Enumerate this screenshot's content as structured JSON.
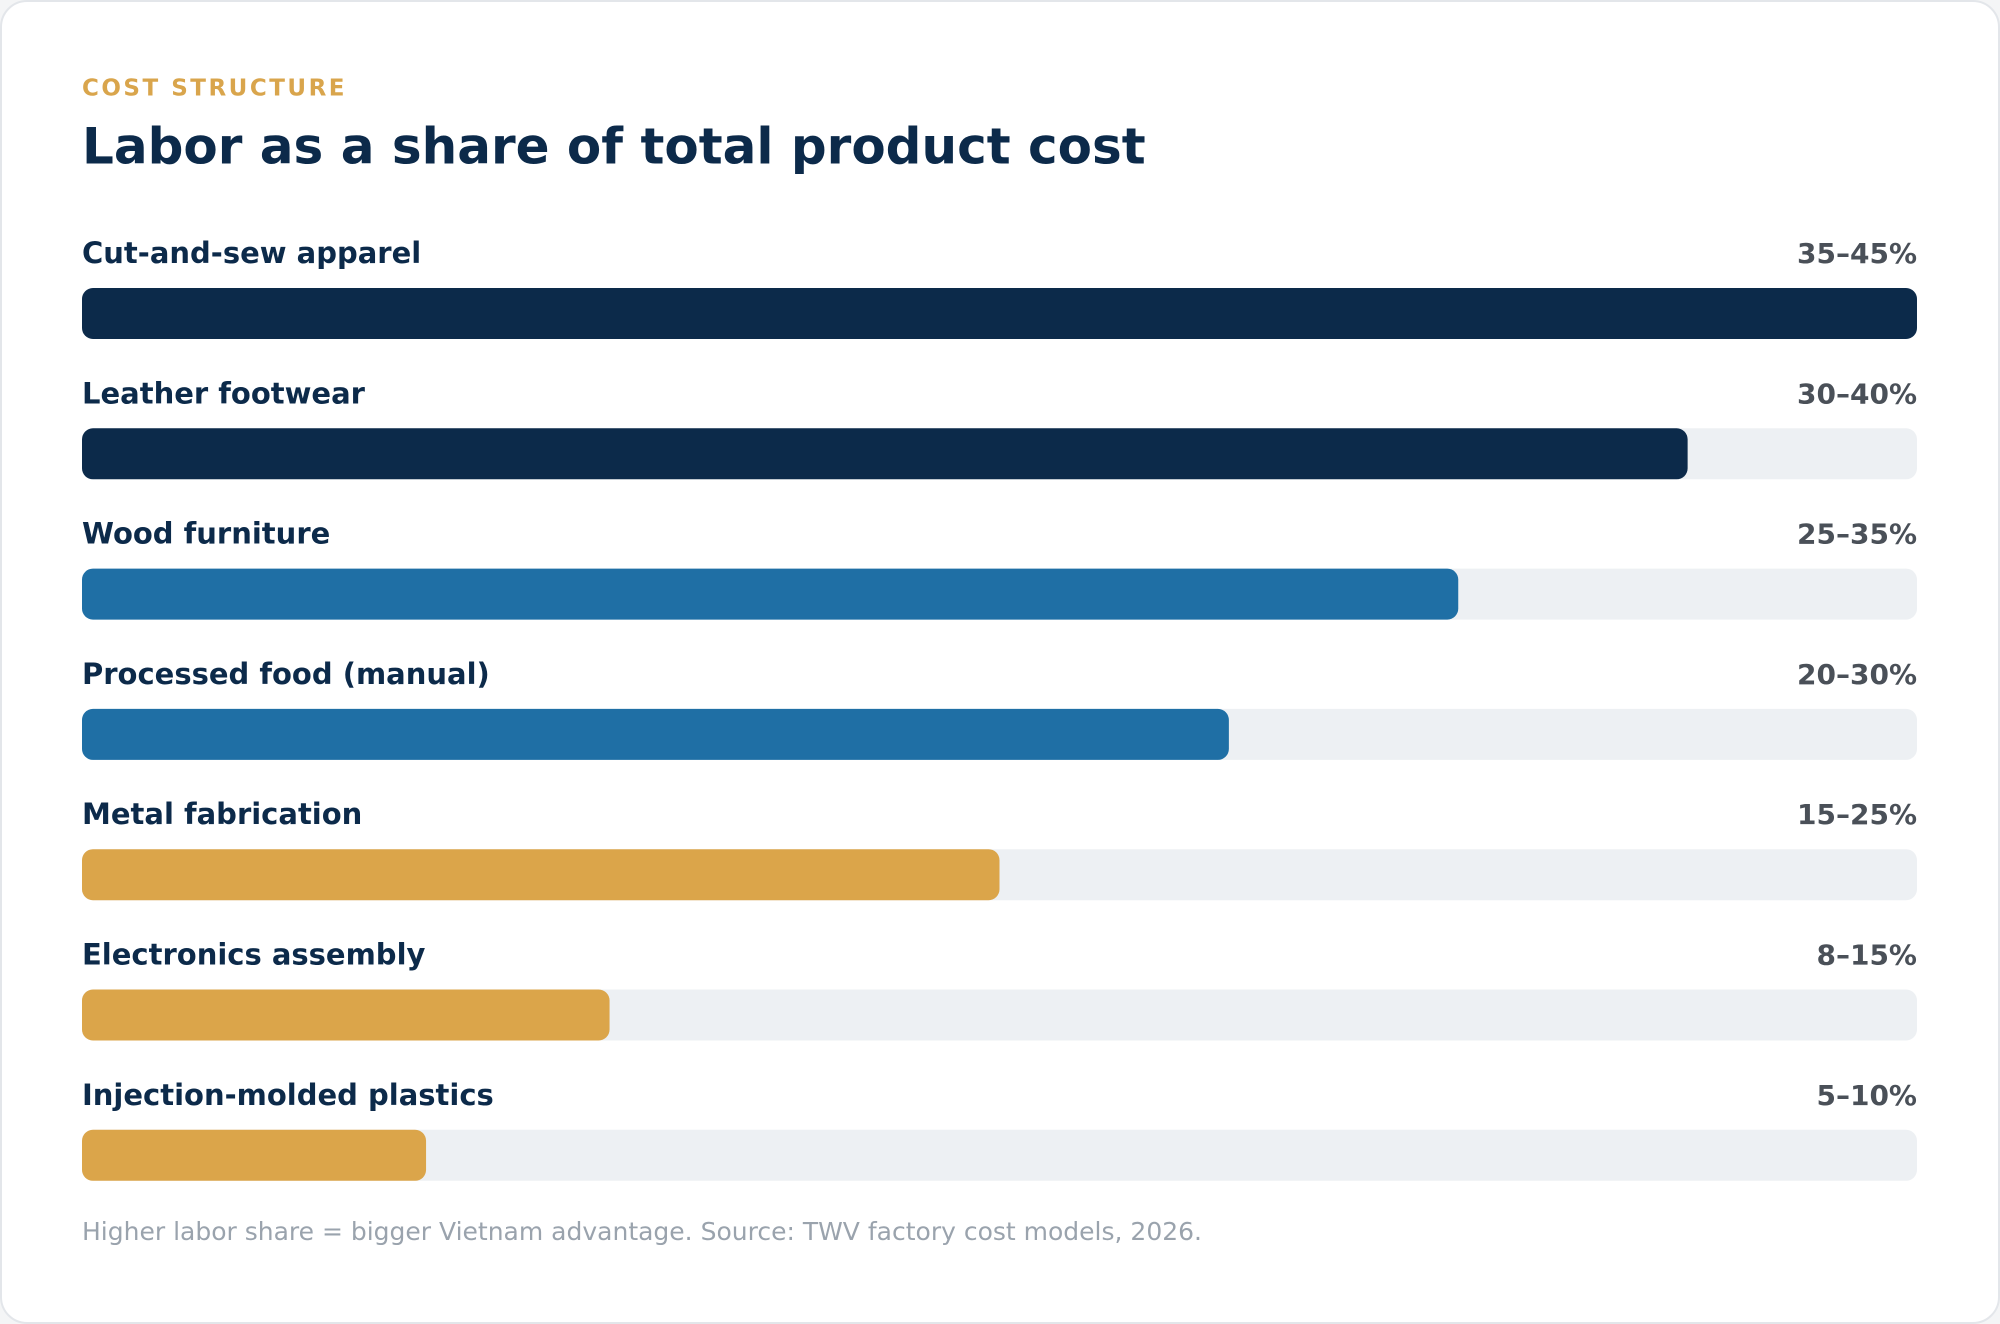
{
  "chart_data": {
    "type": "bar",
    "eyebrow": "COST STRUCTURE",
    "title": "Labor as a share of total product cost",
    "categories": [
      "Cut-and-sew apparel",
      "Leather footwear",
      "Wood furniture",
      "Processed food (manual)",
      "Metal fabrication",
      "Electronics assembly",
      "Injection-molded plastics"
    ],
    "values": [
      40,
      35,
      30,
      25,
      20,
      11.5,
      7.5
    ],
    "value_labels": [
      "35–45%",
      "30–40%",
      "25–35%",
      "20–30%",
      "15–25%",
      "8–15%",
      "5–10%"
    ],
    "colors": [
      "#0c2a4a",
      "#0c2a4a",
      "#1f6fa5",
      "#1f6fa5",
      "#dba54a",
      "#dba54a",
      "#dba54a"
    ],
    "xlim": [
      0,
      40
    ],
    "note": "Higher labor share = bigger Vietnam advantage. Source: TWV factory cost models, 2026."
  }
}
